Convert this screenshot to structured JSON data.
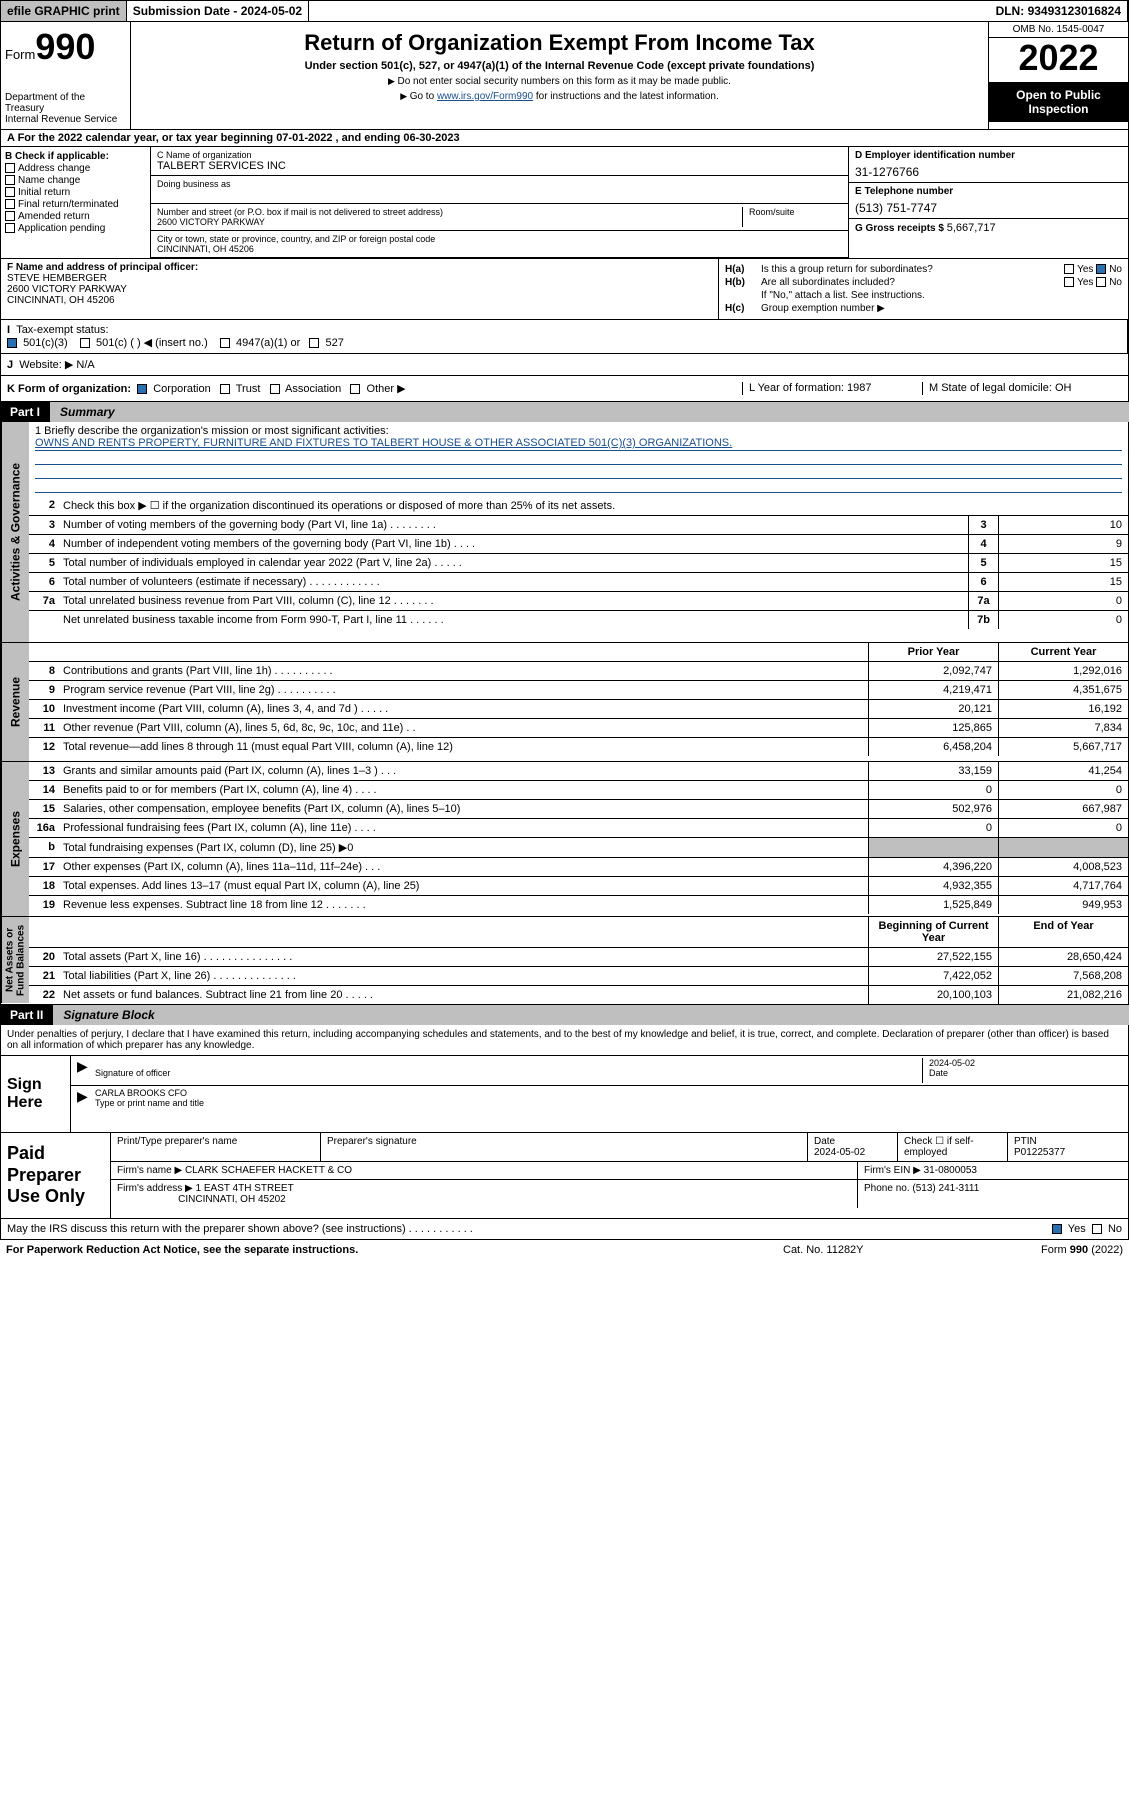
{
  "topbar": {
    "efile": "efile GRAPHIC print",
    "sub_label": "Submission Date - ",
    "sub_date": "2024-05-02",
    "dln_label": "DLN: ",
    "dln": "93493123016824"
  },
  "header": {
    "form_prefix": "Form",
    "form_number": "990",
    "dept": "Department of the Treasury\nInternal Revenue Service",
    "title": "Return of Organization Exempt From Income Tax",
    "subtitle": "Under section 501(c), 527, or 4947(a)(1) of the Internal Revenue Code (except private foundations)",
    "note1": "Do not enter social security numbers on this form as it may be made public.",
    "note2_pre": "Go to ",
    "note2_link": "www.irs.gov/Form990",
    "note2_post": " for instructions and the latest information.",
    "omb": "OMB No. 1545-0047",
    "year": "2022",
    "inspect": "Open to Public Inspection"
  },
  "rowA": "A For the 2022 calendar year, or tax year beginning 07-01-2022   , and ending 06-30-2023",
  "colB": {
    "title": "B Check if applicable:",
    "opts": [
      "Address change",
      "Name change",
      "Initial return",
      "Final return/terminated",
      "Amended return",
      "Application pending"
    ]
  },
  "colC": {
    "name_lbl": "C Name of organization",
    "name": "TALBERT SERVICES INC",
    "dba_lbl": "Doing business as",
    "street_lbl": "Number and street (or P.O. box if mail is not delivered to street address)",
    "suite_lbl": "Room/suite",
    "street": "2600 VICTORY PARKWAY",
    "city_lbl": "City or town, state or province, country, and ZIP or foreign postal code",
    "city": "CINCINNATI, OH  45206"
  },
  "colD": {
    "ein_lbl": "D Employer identification number",
    "ein": "31-1276766",
    "tel_lbl": "E Telephone number",
    "tel": "(513) 751-7747",
    "gross_lbl": "G Gross receipts $ ",
    "gross": "5,667,717"
  },
  "colF": {
    "lbl": "F Name and address of principal officer:",
    "name": "STEVE HEMBERGER",
    "addr1": "2600 VICTORY PARKWAY",
    "addr2": "CINCINNATI, OH  45206"
  },
  "colH": {
    "ha": "Is this a group return for subordinates?",
    "hb": "Are all subordinates included?",
    "hnote": "If \"No,\" attach a list. See instructions.",
    "hc": "Group exemption number ▶",
    "yes": "Yes",
    "no": "No"
  },
  "rowI": {
    "lbl": "Tax-exempt status:",
    "o1": "501(c)(3)",
    "o2": "501(c) (  ) ◀ (insert no.)",
    "o3": "4947(a)(1) or",
    "o4": "527"
  },
  "rowJ": {
    "lbl": "Website: ▶",
    "val": "N/A"
  },
  "rowK": {
    "lbl": "K Form of organization:",
    "o1": "Corporation",
    "o2": "Trust",
    "o3": "Association",
    "o4": "Other ▶",
    "L": "L Year of formation: 1987",
    "M": "M State of legal domicile: OH"
  },
  "part1": {
    "num": "Part I",
    "title": "Summary"
  },
  "summary": {
    "mission_lbl": "1   Briefly describe the organization's mission or most significant activities:",
    "mission": "OWNS AND RENTS PROPERTY, FURNITURE AND FIXTURES TO TALBERT HOUSE & OTHER ASSOCIATED 501(C)(3) ORGANIZATIONS.",
    "r2": "Check this box ▶ ☐  if the organization discontinued its operations or disposed of more than 25% of its net assets.",
    "col_prior": "Prior Year",
    "col_curr": "Current Year",
    "col_beg": "Beginning of Current Year",
    "col_end": "End of Year",
    "rows_top": [
      {
        "n": "3",
        "d": "Number of voting members of the governing body (Part VI, line 1a)  .  .  .  .  .  .  .  .",
        "b": "3",
        "v": "10"
      },
      {
        "n": "4",
        "d": "Number of independent voting members of the governing body (Part VI, line 1b)  .  .  .  .",
        "b": "4",
        "v": "9"
      },
      {
        "n": "5",
        "d": "Total number of individuals employed in calendar year 2022 (Part V, line 2a)  .  .  .  .  .",
        "b": "5",
        "v": "15"
      },
      {
        "n": "6",
        "d": "Total number of volunteers (estimate if necessary)  .  .  .  .  .  .  .  .  .  .  .  .",
        "b": "6",
        "v": "15"
      },
      {
        "n": "7a",
        "d": "Total unrelated business revenue from Part VIII, column (C), line 12  .  .  .  .  .  .  .",
        "b": "7a",
        "v": "0"
      },
      {
        "n": "",
        "d": "Net unrelated business taxable income from Form 990-T, Part I, line 11  .  .  .  .  .  .",
        "b": "7b",
        "v": "0"
      }
    ],
    "rows_rev": [
      {
        "n": "8",
        "d": "Contributions and grants (Part VIII, line 1h)  .  .  .  .  .  .  .  .  .  .",
        "p": "2,092,747",
        "c": "1,292,016"
      },
      {
        "n": "9",
        "d": "Program service revenue (Part VIII, line 2g)  .  .  .  .  .  .  .  .  .  .",
        "p": "4,219,471",
        "c": "4,351,675"
      },
      {
        "n": "10",
        "d": "Investment income (Part VIII, column (A), lines 3, 4, and 7d )  .  .  .  .  .",
        "p": "20,121",
        "c": "16,192"
      },
      {
        "n": "11",
        "d": "Other revenue (Part VIII, column (A), lines 5, 6d, 8c, 9c, 10c, and 11e)  .  .",
        "p": "125,865",
        "c": "7,834"
      },
      {
        "n": "12",
        "d": "Total revenue—add lines 8 through 11 (must equal Part VIII, column (A), line 12)",
        "p": "6,458,204",
        "c": "5,667,717"
      }
    ],
    "rows_exp": [
      {
        "n": "13",
        "d": "Grants and similar amounts paid (Part IX, column (A), lines 1–3 )  .  .  .",
        "p": "33,159",
        "c": "41,254"
      },
      {
        "n": "14",
        "d": "Benefits paid to or for members (Part IX, column (A), line 4)  .  .  .  .",
        "p": "0",
        "c": "0"
      },
      {
        "n": "15",
        "d": "Salaries, other compensation, employee benefits (Part IX, column (A), lines 5–10)",
        "p": "502,976",
        "c": "667,987"
      },
      {
        "n": "16a",
        "d": "Professional fundraising fees (Part IX, column (A), line 11e)  .  .  .  .",
        "p": "0",
        "c": "0"
      },
      {
        "n": "b",
        "d": "Total fundraising expenses (Part IX, column (D), line 25)  ▶0",
        "p": "",
        "c": "",
        "grey": true
      },
      {
        "n": "17",
        "d": "Other expenses (Part IX, column (A), lines 11a–11d, 11f–24e)  .  .  .",
        "p": "4,396,220",
        "c": "4,008,523"
      },
      {
        "n": "18",
        "d": "Total expenses. Add lines 13–17 (must equal Part IX, column (A), line 25)",
        "p": "4,932,355",
        "c": "4,717,764"
      },
      {
        "n": "19",
        "d": "Revenue less expenses. Subtract line 18 from line 12  .  .  .  .  .  .  .",
        "p": "1,525,849",
        "c": "949,953"
      }
    ],
    "rows_net": [
      {
        "n": "20",
        "d": "Total assets (Part X, line 16)  .  .  .  .  .  .  .  .  .  .  .  .  .  .  .",
        "p": "27,522,155",
        "c": "28,650,424"
      },
      {
        "n": "21",
        "d": "Total liabilities (Part X, line 26)  .  .  .  .  .  .  .  .  .  .  .  .  .  .",
        "p": "7,422,052",
        "c": "7,568,208"
      },
      {
        "n": "22",
        "d": "Net assets or fund balances. Subtract line 21 from line 20  .  .  .  .  .",
        "p": "20,100,103",
        "c": "21,082,216"
      }
    ],
    "sides": {
      "gov": "Activities & Governance",
      "rev": "Revenue",
      "exp": "Expenses",
      "net": "Net Assets or\nFund Balances"
    }
  },
  "part2": {
    "num": "Part II",
    "title": "Signature Block"
  },
  "sig": {
    "decl": "Under penalties of perjury, I declare that I have examined this return, including accompanying schedules and statements, and to the best of my knowledge and belief, it is true, correct, and complete. Declaration of preparer (other than officer) is based on all information of which preparer has any knowledge.",
    "here": "Sign Here",
    "officer_lbl": "Signature of officer",
    "date_lbl": "Date",
    "date": "2024-05-02",
    "name": "CARLA BROOKS CFO",
    "name_lbl": "Type or print name and title"
  },
  "paid": {
    "title": "Paid Preparer Use Only",
    "h1": "Print/Type preparer's name",
    "h2": "Preparer's signature",
    "h3": "Date",
    "h4": "Check ☐ if self-employed",
    "h5": "PTIN",
    "date": "2024-05-02",
    "ptin": "P01225377",
    "firm_lbl": "Firm's name  ▶",
    "firm": "CLARK SCHAEFER HACKETT & CO",
    "ein_lbl": "Firm's EIN ▶",
    "ein": "31-0800053",
    "addr_lbl": "Firm's address ▶",
    "addr1": "1 EAST 4TH STREET",
    "addr2": "CINCINNATI, OH  45202",
    "phone_lbl": "Phone no.",
    "phone": "(513) 241-3111"
  },
  "disclose": {
    "q": "May the IRS discuss this return with the preparer shown above? (see instructions)  .  .  .  .  .  .  .  .  .  .  .",
    "yes": "Yes",
    "no": "No"
  },
  "footer": {
    "pra": "For Paperwork Reduction Act Notice, see the separate instructions.",
    "cat": "Cat. No. 11282Y",
    "form": "Form 990 (2022)"
  },
  "colors": {
    "grey": "#bfbfbf",
    "link": "#1a4f8f",
    "checkblue": "#2a6fb0"
  }
}
